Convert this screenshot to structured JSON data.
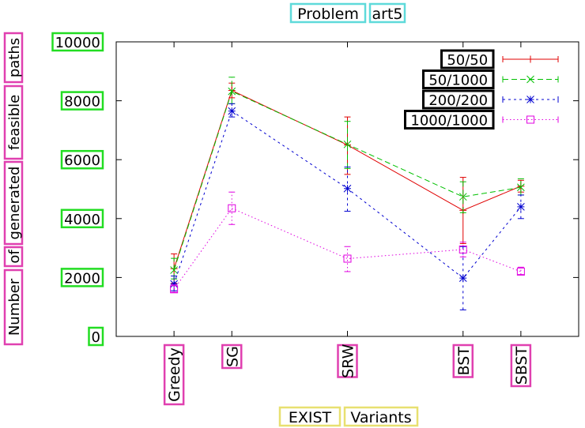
{
  "chart_data": {
    "type": "line",
    "title_words": [
      "Problem",
      "art5"
    ],
    "xlabel_words": [
      "EXIST",
      "Variants"
    ],
    "ylabel_words": [
      "Number",
      "of",
      "generated",
      "feasible",
      "paths"
    ],
    "categories": [
      "Greedy",
      "SG",
      "SRW",
      "BST",
      "SBST"
    ],
    "x": [
      1,
      2,
      4,
      6,
      7
    ],
    "xlim": [
      0,
      8
    ],
    "ylim": [
      0,
      10000
    ],
    "yticks": [
      0,
      2000,
      4000,
      6000,
      8000,
      10000
    ],
    "ytick_labels": [
      "0",
      "2000",
      "4000",
      "6000",
      "8000",
      "10000"
    ],
    "legend_position": "top-right",
    "grid": false,
    "series": [
      {
        "name": "50/50",
        "color": "#e00000",
        "dash": "",
        "marker": "plus",
        "values": [
          2300,
          8350,
          6500,
          4280,
          5100
        ],
        "err": [
          [
            1800,
            2800
          ],
          [
            8100,
            8600
          ],
          [
            5500,
            7450
          ],
          [
            3150,
            5400
          ],
          [
            4900,
            5300
          ]
        ]
      },
      {
        "name": "50/1000",
        "color": "#00c000",
        "dash": "7,4",
        "marker": "x",
        "values": [
          2250,
          8320,
          6520,
          4740,
          5060
        ],
        "err": [
          [
            1950,
            2650
          ],
          [
            7900,
            8800
          ],
          [
            5700,
            7300
          ],
          [
            4200,
            5250
          ],
          [
            4800,
            5350
          ]
        ]
      },
      {
        "name": "200/200",
        "color": "#0000d0",
        "dash": "3,4",
        "marker": "star",
        "values": [
          1780,
          7650,
          5020,
          1980,
          4400
        ],
        "err": [
          [
            1550,
            2050
          ],
          [
            7450,
            7900
          ],
          [
            4250,
            5750
          ],
          [
            900,
            3050
          ],
          [
            4000,
            4800
          ]
        ]
      },
      {
        "name": "1000/1000",
        "color": "#e000e0",
        "dash": "1.5,3",
        "marker": "square",
        "values": [
          1600,
          4350,
          2640,
          2950,
          2200
        ],
        "err": [
          [
            1500,
            1750
          ],
          [
            3800,
            4900
          ],
          [
            2200,
            3050
          ],
          [
            2700,
            3200
          ],
          [
            2100,
            2350
          ]
        ]
      }
    ]
  }
}
